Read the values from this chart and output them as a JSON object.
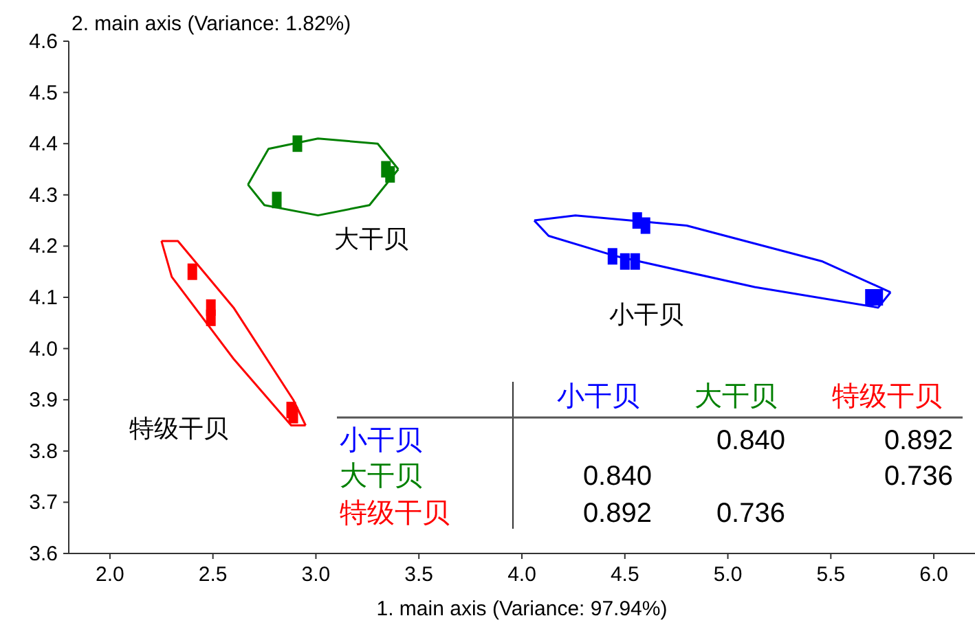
{
  "chart_data": {
    "type": "scatter",
    "xlabel": "1. main axis (Variance: 97.94%)",
    "ylabel": "2. main axis (Variance: 1.82%)",
    "xlim": [
      1.8,
      6.2
    ],
    "ylim": [
      3.6,
      4.6
    ],
    "xticks": [
      {
        "value": 2,
        "label": "2.0"
      },
      {
        "value": 2.5,
        "label": "2.5"
      },
      {
        "value": 3,
        "label": "3.0"
      },
      {
        "value": 3.5,
        "label": "3.5"
      },
      {
        "value": 4,
        "label": "4.0"
      },
      {
        "value": 4.5,
        "label": "4.5"
      },
      {
        "value": 5,
        "label": "5.0"
      },
      {
        "value": 5.5,
        "label": "5.5"
      },
      {
        "value": 6,
        "label": "6.0"
      }
    ],
    "yticks": [
      {
        "value": 3.6,
        "label": "3.6"
      },
      {
        "value": 3.7,
        "label": "3.7"
      },
      {
        "value": 3.8,
        "label": "3.8"
      },
      {
        "value": 3.9,
        "label": "3.9"
      },
      {
        "value": 4,
        "label": "4.0"
      },
      {
        "value": 4.1,
        "label": "4.1"
      },
      {
        "value": 4.2,
        "label": "4.2"
      },
      {
        "value": 4.3,
        "label": "4.3"
      },
      {
        "value": 4.4,
        "label": "4.4"
      },
      {
        "value": 4.5,
        "label": "4.5"
      },
      {
        "value": 4.6,
        "label": "4.6"
      }
    ],
    "grid": false,
    "marker": "square",
    "series": [
      {
        "type": "scatter",
        "color": "#0000ff",
        "x": [
          4.56,
          4.6,
          4.44,
          4.5,
          4.55,
          5.69,
          5.73
        ],
        "values": [
          4.25,
          4.24,
          4.18,
          4.17,
          4.17,
          4.1,
          4.1
        ]
      },
      {
        "type": "scatter",
        "color": "#008000",
        "x": [
          2.91,
          2.81,
          3.34,
          3.36
        ],
        "values": [
          4.4,
          4.29,
          4.35,
          4.34
        ]
      },
      {
        "type": "scatter",
        "color": "#ff0000",
        "x": [
          2.4,
          2.49,
          2.49,
          2.88,
          2.89
        ],
        "values": [
          4.15,
          4.08,
          4.06,
          3.88,
          3.87
        ]
      },
      {
        "type": "line",
        "marker": "none",
        "color": "#0000ff",
        "x": [
          4.06,
          4.26,
          4.8,
          5.46,
          5.79
        ],
        "values": [
          4.25,
          4.26,
          4.24,
          4.17,
          4.11
        ]
      },
      {
        "type": "line",
        "marker": "none",
        "color": "#0000ff",
        "x": [
          4.06,
          4.13,
          4.46,
          5.13,
          5.73,
          5.79
        ],
        "values": [
          4.25,
          4.22,
          4.18,
          4.12,
          4.08,
          4.11
        ]
      },
      {
        "type": "line",
        "marker": "none",
        "color": "#008000",
        "x": [
          2.67,
          2.77,
          3.01,
          3.3,
          3.4
        ],
        "values": [
          4.32,
          4.39,
          4.41,
          4.4,
          4.35
        ]
      },
      {
        "type": "line",
        "marker": "none",
        "color": "#008000",
        "x": [
          2.67,
          2.75,
          3.01,
          3.26,
          3.4
        ],
        "values": [
          4.32,
          4.28,
          4.26,
          4.28,
          4.35
        ]
      },
      {
        "type": "line",
        "marker": "none",
        "color": "#ff0000",
        "x": [
          2.25,
          2.33,
          2.6,
          2.89,
          2.95
        ],
        "values": [
          4.21,
          4.21,
          4.08,
          3.9,
          3.85
        ]
      },
      {
        "type": "line",
        "marker": "none",
        "color": "#ff0000",
        "x": [
          2.25,
          2.3,
          2.6,
          2.88,
          2.95
        ],
        "values": [
          4.21,
          4.14,
          3.98,
          3.85,
          3.85
        ]
      }
    ],
    "annotations": [
      "小干贝",
      "大干贝",
      "特级干贝",
      "小干贝",
      "大干贝",
      "特级干贝",
      "小干贝",
      null,
      "0.840",
      "0.892",
      "大干贝",
      "0.840",
      null,
      "0.736",
      "特级干贝",
      "0.892",
      "0.736",
      null
    ]
  }
}
